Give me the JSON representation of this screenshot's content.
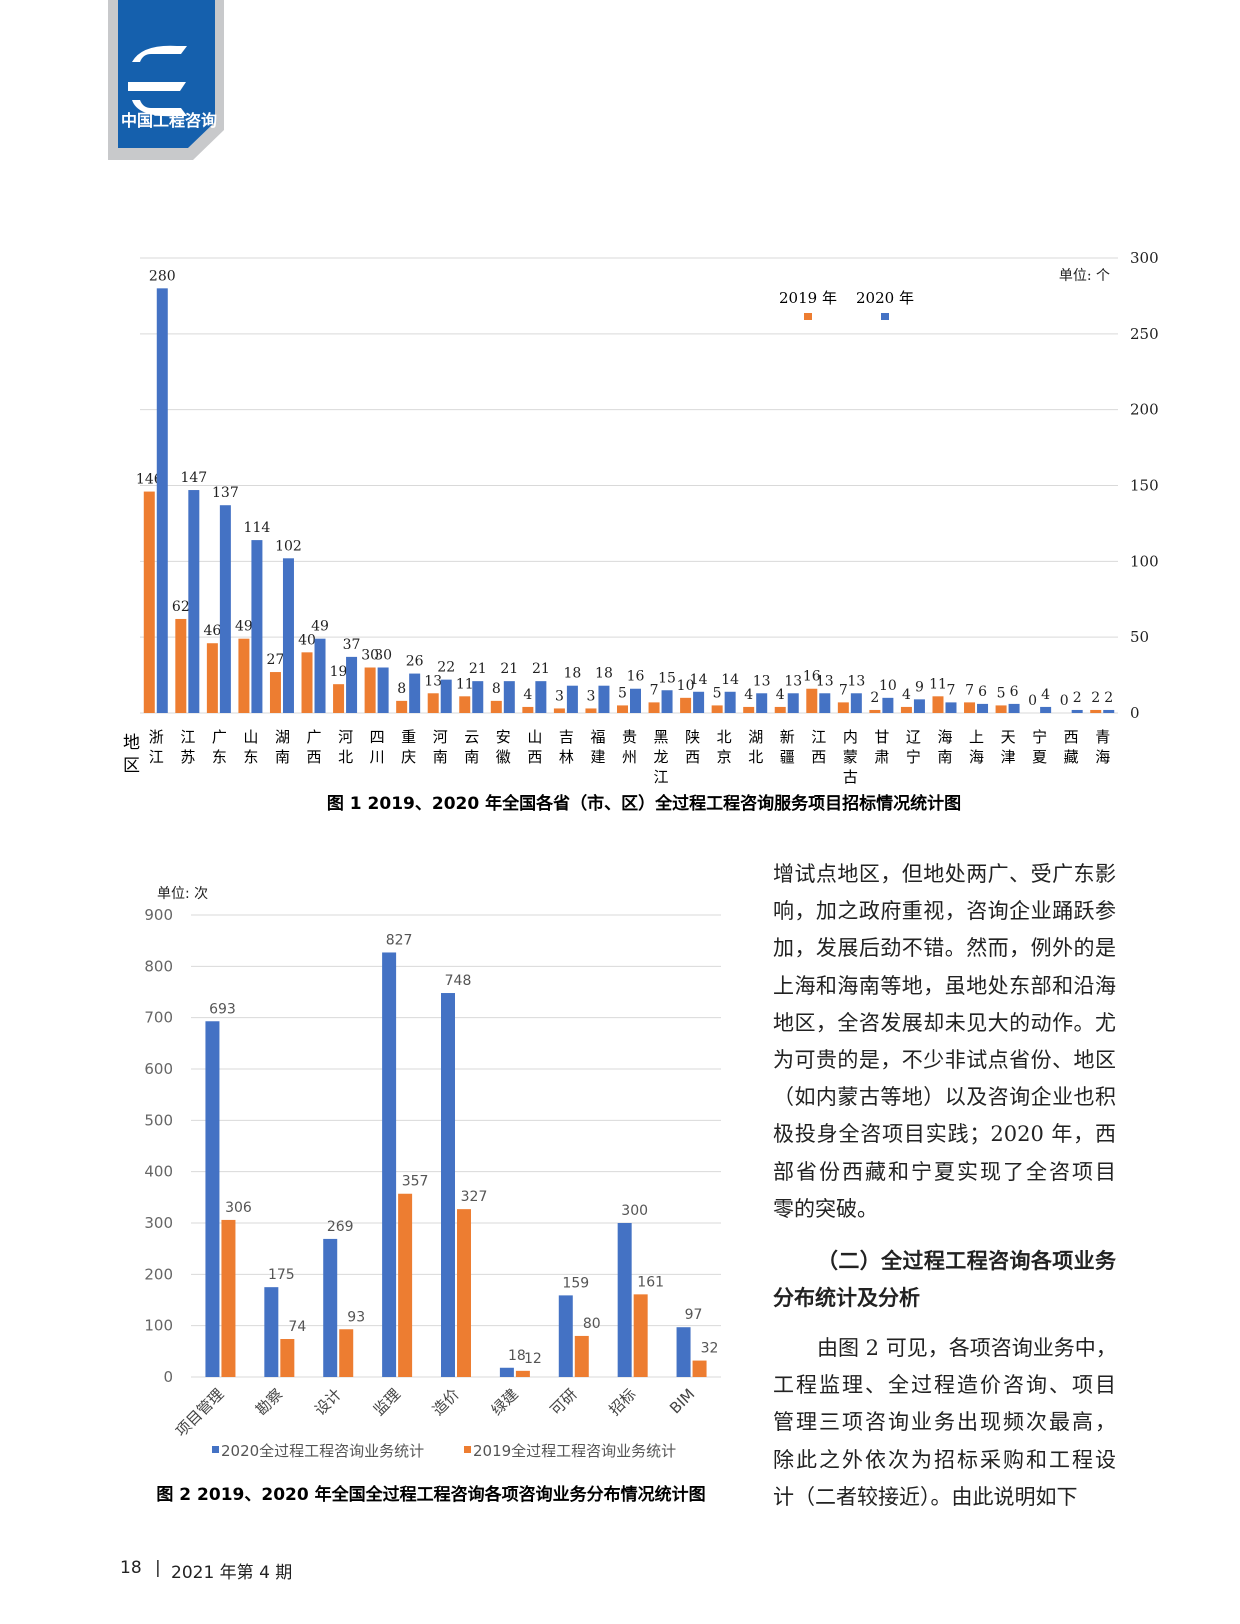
{
  "header": {
    "logo_text": "中国工程咨询"
  },
  "chart_data": [
    {
      "type": "bar",
      "caption": "图 1 2019、2020 年全国各省（市、区）全过程工程咨询服务项目招标情况统计图",
      "unit": "单位: 个",
      "x_label": "地区",
      "categories": [
        "浙江",
        "江苏",
        "广东",
        "山东",
        "湖南",
        "广西",
        "河北",
        "四川",
        "重庆",
        "河南",
        "云南",
        "安徽",
        "山西",
        "吉林",
        "福建",
        "贵州",
        "黑龙江",
        "陕西",
        "北京",
        "湖北",
        "新疆",
        "江西",
        "内蒙古",
        "甘肃",
        "辽宁",
        "海南",
        "上海",
        "天津",
        "宁夏",
        "西藏",
        "青海"
      ],
      "series": [
        {
          "name": "2019 年",
          "color": "#ed7d31",
          "values": [
            146,
            62,
            46,
            49,
            27,
            40,
            19,
            30,
            8,
            13,
            11,
            8,
            4,
            3,
            3,
            5,
            7,
            10,
            5,
            4,
            4,
            16,
            7,
            2,
            4,
            11,
            7,
            5,
            0,
            0,
            2
          ]
        },
        {
          "name": "2020 年",
          "color": "#4472c4",
          "values": [
            280,
            147,
            137,
            114,
            102,
            49,
            37,
            30,
            26,
            22,
            21,
            21,
            21,
            18,
            18,
            16,
            15,
            14,
            14,
            13,
            13,
            13,
            13,
            10,
            9,
            7,
            6,
            6,
            4,
            2,
            2
          ]
        }
      ],
      "ylim": [
        0,
        300
      ],
      "yticks": [
        0,
        50,
        100,
        150,
        200,
        250,
        300
      ],
      "y_axis_side": "right",
      "grid": true,
      "legend": "top"
    },
    {
      "type": "bar",
      "caption": "图 2 2019、2020 年全国全过程工程咨询各项咨询业务分布情况统计图",
      "unit": "单位: 次",
      "categories": [
        "项目管理",
        "勘察",
        "设计",
        "监理",
        "造价",
        "绿建",
        "可研",
        "招标",
        "BIM"
      ],
      "series": [
        {
          "name": "2020全过程工程咨询业务统计",
          "color": "#4472c4",
          "values": [
            693,
            175,
            269,
            827,
            748,
            18,
            159,
            300,
            97
          ]
        },
        {
          "name": "2019全过程工程咨询业务统计",
          "color": "#ed7d31",
          "values": [
            306,
            74,
            93,
            357,
            327,
            12,
            80,
            161,
            32
          ]
        }
      ],
      "ylim": [
        0,
        900
      ],
      "yticks": [
        0,
        100,
        200,
        300,
        400,
        500,
        600,
        700,
        800,
        900
      ],
      "y_axis_side": "left",
      "grid": true,
      "legend": "bottom"
    }
  ],
  "text_column": {
    "paragraph_1": [
      "增试点地区，但地处两广、受广东影",
      "响，加之政府重视，咨询企业踊跃参",
      "加，发展后劲不错。然而，例外的是",
      "上海和海南等地，虽地处东部和沿海",
      "地区，全咨发展却未见大的动作。尤",
      "为可贵的是，不少非试点省份、地区",
      "（如内蒙古等地）以及咨询企业也积",
      "极投身全咨项目实践；2020 年，西",
      "部省份西藏和宁夏实现了全咨项目",
      "零的突破。"
    ],
    "heading": [
      "（二）全过程工程咨询各项业务",
      "分布统计及分析"
    ],
    "paragraph_2": [
      "由图 2 可见，各项咨询业务中，",
      "工程监理、全过程造价咨询、项目",
      "管理三项咨询业务出现频次最高，",
      "除此之外依次为招标采购和工程设",
      "计（二者较接近）。由此说明如下"
    ]
  },
  "footer": {
    "page": "18",
    "issue": "2021 年第 4 期"
  }
}
